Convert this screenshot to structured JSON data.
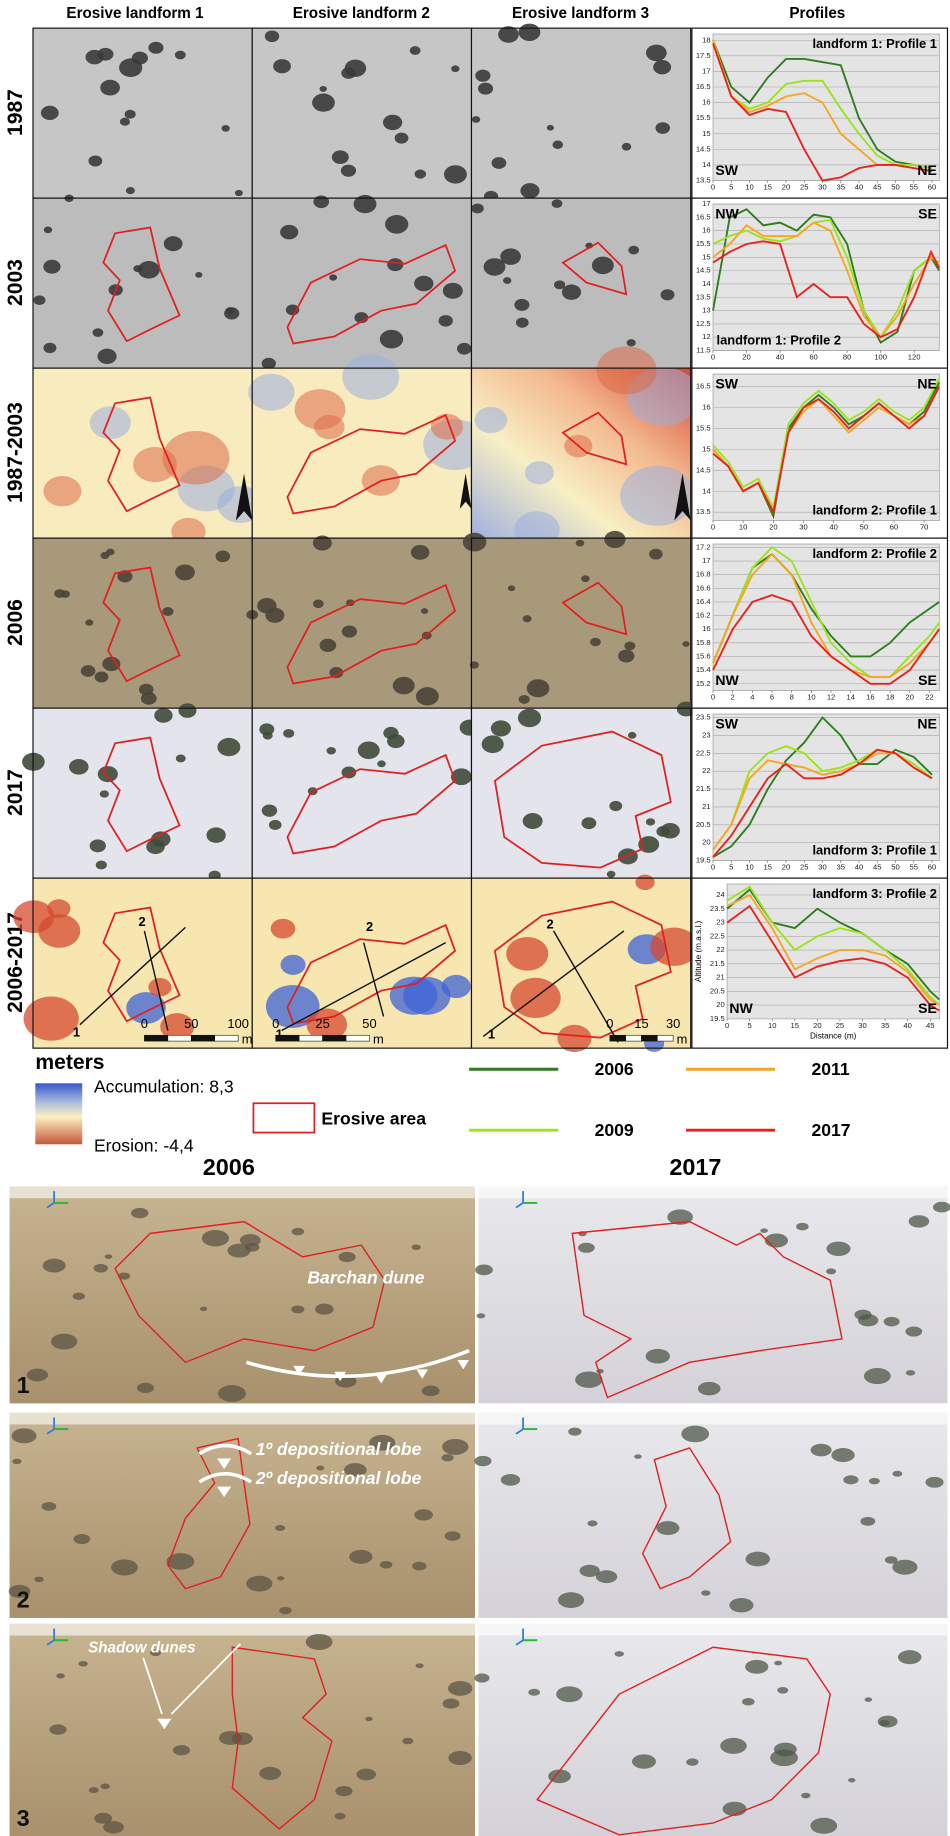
{
  "header": {
    "columns": [
      "Erosive landform 1",
      "Erosive landform 2",
      "Erosive landform 3",
      "Profiles"
    ]
  },
  "rows": [
    "1987",
    "2003",
    "1987-2003",
    "2006",
    "2017",
    "2006-2017"
  ],
  "transect_labels": [
    "1",
    "2"
  ],
  "scale_bars": [
    {
      "ticks": [
        0,
        50,
        100
      ],
      "unit": "m"
    },
    {
      "ticks": [
        0,
        25,
        50
      ],
      "unit": "m"
    },
    {
      "ticks": [
        0,
        15,
        30
      ],
      "unit": "m"
    }
  ],
  "legend": {
    "title": "meters",
    "accumulation": "Accumulation: 8,3",
    "erosion": "Erosion: -4,4",
    "erosive_area": "Erosive area"
  },
  "views": {
    "columns": [
      "2006",
      "2017"
    ],
    "rows": [
      "1",
      "2",
      "3"
    ],
    "annotations": [
      "Barchan dune",
      "1º depositional lobe",
      "2º depositional lobe",
      "Shadow dunes"
    ]
  },
  "chart_data": [
    {
      "type": "line",
      "title": "landform 1: Profile 1",
      "directions": [
        "SW",
        "NE"
      ],
      "x": [
        0,
        5,
        10,
        15,
        20,
        25,
        30,
        35,
        40,
        45,
        50,
        55,
        60
      ],
      "xlim": [
        0,
        62
      ],
      "xticks": [
        0,
        5,
        10,
        15,
        20,
        25,
        30,
        35,
        40,
        45,
        50,
        55,
        60
      ],
      "ylim": [
        13.5,
        18.2
      ],
      "yticks": [
        13.5,
        14,
        14.5,
        15,
        15.5,
        16,
        16.5,
        17,
        17.5,
        18
      ],
      "grid": true,
      "series": [
        {
          "name": "2006",
          "color": "#2e7d1e",
          "values": [
            18,
            16.5,
            16,
            16.8,
            17.4,
            17.4,
            17.3,
            17.2,
            15.5,
            14.5,
            14.1,
            14,
            13.9
          ]
        },
        {
          "name": "2009",
          "color": "#9be31d",
          "values": [
            18,
            16.2,
            15.8,
            16,
            16.6,
            16.7,
            16.7,
            15.8,
            15,
            14.3,
            14,
            14,
            13.9
          ]
        },
        {
          "name": "2011",
          "color": "#f5a623",
          "values": [
            18,
            16.2,
            15.7,
            15.9,
            16.2,
            16.3,
            16,
            15,
            14.5,
            14,
            14,
            13.9,
            13.8
          ]
        },
        {
          "name": "2017",
          "color": "#e8221b",
          "values": [
            17.9,
            16.2,
            15.6,
            15.8,
            15.7,
            14.5,
            13.5,
            13.6,
            13.9,
            14,
            14,
            13.9,
            13.8
          ]
        }
      ]
    },
    {
      "type": "line",
      "title": "landform 1: Profile 2",
      "directions": [
        "NW",
        "SE"
      ],
      "x": [
        0,
        10,
        20,
        30,
        40,
        50,
        60,
        70,
        80,
        90,
        100,
        110,
        120,
        130,
        135
      ],
      "xlim": [
        0,
        135
      ],
      "xticks": [
        0,
        20,
        40,
        60,
        80,
        100,
        120
      ],
      "ylim": [
        11.5,
        17
      ],
      "yticks": [
        11.5,
        12,
        12.5,
        13,
        13.5,
        14,
        14.5,
        15,
        15.5,
        16,
        16.5,
        17
      ],
      "grid": true,
      "series": [
        {
          "name": "2006",
          "color": "#2e7d1e",
          "values": [
            13,
            16.5,
            16.8,
            16.2,
            16.3,
            16,
            16.6,
            16.5,
            15.5,
            13,
            11.8,
            12.2,
            14.5,
            15,
            14.5
          ]
        },
        {
          "name": "2009",
          "color": "#9be31d",
          "values": [
            15.5,
            15.8,
            16,
            15.7,
            15.6,
            15.8,
            16.3,
            16.4,
            15,
            13,
            12,
            13,
            14.5,
            15,
            14.8
          ]
        },
        {
          "name": "2011",
          "color": "#f5a623",
          "values": [
            15,
            15.5,
            16.2,
            15.8,
            15.8,
            15.8,
            16.3,
            16,
            14.5,
            12.8,
            12,
            12.8,
            14,
            15,
            14.8
          ]
        },
        {
          "name": "2017",
          "color": "#e8221b",
          "values": [
            14.8,
            15.2,
            15.5,
            15.6,
            15.5,
            13.5,
            14,
            13.5,
            13.5,
            12.5,
            12,
            12.3,
            13.5,
            15.2,
            14.6
          ]
        }
      ]
    },
    {
      "type": "line",
      "title": "landform 2: Profile 1",
      "directions": [
        "SW",
        "NE"
      ],
      "x": [
        0,
        5,
        10,
        15,
        20,
        25,
        30,
        35,
        40,
        45,
        50,
        55,
        60,
        65,
        70,
        75
      ],
      "xlim": [
        0,
        75
      ],
      "xticks": [
        0,
        10,
        20,
        30,
        40,
        50,
        60,
        70
      ],
      "ylim": [
        13.3,
        16.8
      ],
      "yticks": [
        13.5,
        14,
        14.5,
        15,
        15.5,
        16,
        16.5
      ],
      "grid": true,
      "series": [
        {
          "name": "2006",
          "color": "#2e7d1e",
          "values": [
            15,
            14.6,
            14,
            14.2,
            13.4,
            15.5,
            16,
            16.3,
            16,
            15.6,
            15.8,
            16.1,
            15.8,
            15.6,
            15.9,
            16.6
          ]
        },
        {
          "name": "2009",
          "color": "#9be31d",
          "values": [
            15.1,
            14.7,
            14.1,
            14.3,
            13.6,
            15.6,
            16.1,
            16.4,
            16.1,
            15.7,
            15.9,
            16.2,
            15.9,
            15.7,
            16,
            16.7
          ]
        },
        {
          "name": "2011",
          "color": "#f5a623",
          "values": [
            15,
            14.6,
            14,
            14.2,
            13.5,
            15.4,
            15.9,
            16.2,
            15.8,
            15.4,
            15.7,
            16,
            15.8,
            15.6,
            15.8,
            16.5
          ]
        },
        {
          "name": "2017",
          "color": "#e8221b",
          "values": [
            14.9,
            14.6,
            14,
            14.2,
            13.5,
            15.4,
            16,
            16.2,
            15.9,
            15.5,
            15.8,
            16.1,
            15.8,
            15.5,
            15.8,
            16.5
          ]
        }
      ]
    },
    {
      "type": "line",
      "title": "landform 2: Profile 2",
      "directions": [
        "NW",
        "SE"
      ],
      "x": [
        0,
        2,
        4,
        6,
        8,
        10,
        12,
        14,
        16,
        18,
        20,
        22,
        23
      ],
      "xlim": [
        0,
        23
      ],
      "xticks": [
        0,
        2,
        4,
        6,
        8,
        10,
        12,
        14,
        16,
        18,
        20,
        22
      ],
      "ylim": [
        15.1,
        17.25
      ],
      "yticks": [
        15.2,
        15.4,
        15.6,
        15.8,
        16,
        16.2,
        16.4,
        16.6,
        16.8,
        17,
        17.2
      ],
      "grid": true,
      "series": [
        {
          "name": "2006",
          "color": "#2e7d1e",
          "values": [
            15.5,
            16.2,
            16.9,
            17.1,
            16.8,
            16.3,
            15.9,
            15.6,
            15.6,
            15.8,
            16.1,
            16.3,
            16.4
          ]
        },
        {
          "name": "2009",
          "color": "#9be31d",
          "values": [
            15.5,
            16.2,
            16.9,
            17.2,
            17,
            16.4,
            15.8,
            15.5,
            15.3,
            15.3,
            15.6,
            15.9,
            16.1
          ]
        },
        {
          "name": "2011",
          "color": "#f5a623",
          "values": [
            15.5,
            16.2,
            16.8,
            17.1,
            16.8,
            16.1,
            15.6,
            15.4,
            15.3,
            15.3,
            15.5,
            15.8,
            16
          ]
        },
        {
          "name": "2017",
          "color": "#e8221b",
          "values": [
            15.4,
            16,
            16.4,
            16.5,
            16.4,
            15.9,
            15.6,
            15.4,
            15.2,
            15.2,
            15.4,
            15.8,
            16
          ]
        }
      ]
    },
    {
      "type": "line",
      "title": "landform 3: Profile 1",
      "directions": [
        "SW",
        "NE"
      ],
      "x": [
        0,
        5,
        10,
        15,
        20,
        25,
        30,
        35,
        40,
        45,
        50,
        55,
        60
      ],
      "xlim": [
        0,
        62
      ],
      "xticks": [
        0,
        5,
        10,
        15,
        20,
        25,
        30,
        35,
        40,
        45,
        50,
        55,
        60
      ],
      "ylim": [
        19.5,
        23.6
      ],
      "yticks": [
        19.5,
        20,
        20.5,
        21,
        21.5,
        22,
        22.5,
        23,
        23.5
      ],
      "grid": true,
      "series": [
        {
          "name": "2006",
          "color": "#2e7d1e",
          "values": [
            19.6,
            19.9,
            20.5,
            21.5,
            22.3,
            22.8,
            23.5,
            23,
            22.2,
            22.2,
            22.6,
            22.4,
            21.9
          ]
        },
        {
          "name": "2009",
          "color": "#9be31d",
          "values": [
            19.8,
            20.5,
            22,
            22.5,
            22.7,
            22.5,
            22,
            22.1,
            22.3,
            22.6,
            22.5,
            22.2,
            21.8
          ]
        },
        {
          "name": "2011",
          "color": "#f5a623",
          "values": [
            19.8,
            20.5,
            21.8,
            22.3,
            22.2,
            22.1,
            21.9,
            22,
            22.2,
            22.5,
            22.5,
            22.1,
            21.8
          ]
        },
        {
          "name": "2017",
          "color": "#e8221b",
          "values": [
            19.6,
            20.2,
            21,
            21.8,
            22.2,
            21.8,
            21.8,
            21.9,
            22.2,
            22.6,
            22.5,
            22.1,
            21.8
          ]
        }
      ]
    },
    {
      "type": "line",
      "title": "landform 3: Profile 2",
      "directions": [
        "NW",
        "SE"
      ],
      "x_label": "Distance (m)",
      "y_label": "Altitude (m.a.s.l.)",
      "x": [
        0,
        5,
        10,
        15,
        20,
        25,
        30,
        35,
        40,
        45,
        47
      ],
      "xlim": [
        0,
        47
      ],
      "xticks": [
        0,
        5,
        10,
        15,
        20,
        25,
        30,
        35,
        40,
        45
      ],
      "ylim": [
        19.5,
        24.4
      ],
      "yticks": [
        19.5,
        20,
        20.5,
        21,
        21.5,
        22,
        22.5,
        23,
        23.5,
        24
      ],
      "grid": true,
      "series": [
        {
          "name": "2006",
          "color": "#2e7d1e",
          "values": [
            23.5,
            24.2,
            23,
            22.8,
            23.5,
            23,
            22.6,
            22,
            21.5,
            20.5,
            20.2
          ]
        },
        {
          "name": "2009",
          "color": "#9be31d",
          "values": [
            23.8,
            24.3,
            23,
            22,
            22.5,
            22.8,
            22.6,
            22,
            21.3,
            20.3,
            20
          ]
        },
        {
          "name": "2011",
          "color": "#f5a623",
          "values": [
            23.6,
            24,
            22.8,
            21.3,
            21.7,
            22,
            22,
            21.8,
            21.2,
            20.2,
            20
          ]
        },
        {
          "name": "2017",
          "color": "#e8221b",
          "values": [
            23,
            23.6,
            22.3,
            21,
            21.4,
            21.6,
            21.7,
            21.5,
            21,
            20,
            19.8
          ]
        }
      ]
    }
  ]
}
